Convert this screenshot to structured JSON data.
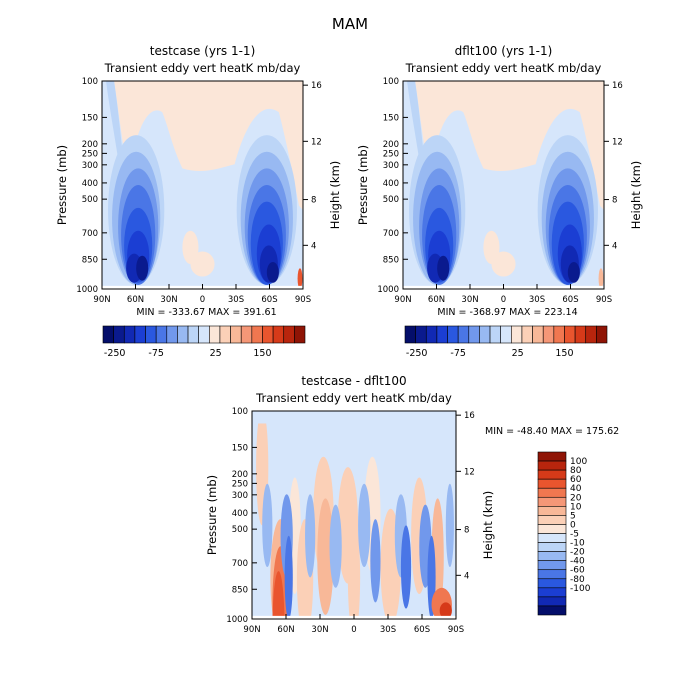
{
  "page_title": "MAM",
  "colors": {
    "blues": [
      "#ffffff",
      "#d6e6fb",
      "#bcd5f7",
      "#98b9f2",
      "#7198ec",
      "#4a76e6",
      "#2a58e0",
      "#1b3ed3",
      "#1129b4",
      "#0a1a8e",
      "#040e6a"
    ],
    "reds": [
      "#ffffff",
      "#fbe6d8",
      "#fbd0b7",
      "#f8b898",
      "#f59777",
      "#f07750",
      "#e9552e",
      "#d63a19",
      "#b8250d",
      "#8f1405"
    ]
  },
  "chart_data": [
    {
      "type": "heatmap",
      "title": "testcase (yrs 1-1)",
      "subtitle": "Transient eddy vert heatK mb/day",
      "xlabel": "",
      "ylabel": "Pressure (mb)",
      "y2label": "Height (km)",
      "x_ticks": [
        "90N",
        "60N",
        "30N",
        "0",
        "30S",
        "60S",
        "90S"
      ],
      "y_ticks": [
        "100",
        "150",
        "200",
        "250",
        "300",
        "400",
        "500",
        "700",
        "850",
        "1000"
      ],
      "y2_ticks": [
        "16",
        "12",
        "8",
        "4"
      ],
      "stats": "MIN = -333.67    MAX = 391.61",
      "colorbar_labels": [
        "-250",
        "-75",
        "25",
        "150"
      ],
      "min": -333.67,
      "max": 391.61
    },
    {
      "type": "heatmap",
      "title": "dflt100 (yrs 1-1)",
      "subtitle": "Transient eddy vert heatK mb/day",
      "xlabel": "",
      "ylabel": "Pressure (mb)",
      "y2label": "Height (km)",
      "x_ticks": [
        "90N",
        "60N",
        "30N",
        "0",
        "30S",
        "60S",
        "90S"
      ],
      "y_ticks": [
        "100",
        "150",
        "200",
        "250",
        "300",
        "400",
        "500",
        "700",
        "850",
        "1000"
      ],
      "y2_ticks": [
        "16",
        "12",
        "8",
        "4"
      ],
      "stats": "MIN = -368.97    MAX = 223.14",
      "colorbar_labels": [
        "-250",
        "-75",
        "25",
        "150"
      ],
      "min": -368.97,
      "max": 223.14
    },
    {
      "type": "heatmap",
      "title": "testcase - dflt100",
      "subtitle": "Transient eddy vert heatK mb/day",
      "xlabel": "",
      "ylabel": "Pressure (mb)",
      "y2label": "Height (km)",
      "x_ticks": [
        "90N",
        "60N",
        "30N",
        "0",
        "30S",
        "60S",
        "90S"
      ],
      "y_ticks": [
        "100",
        "150",
        "200",
        "250",
        "300",
        "400",
        "500",
        "700",
        "850",
        "1000"
      ],
      "y2_ticks": [
        "16",
        "12",
        "8",
        "4"
      ],
      "stats": "MIN = -48.40    MAX = 175.62",
      "colorbar_labels": [
        "100",
        "80",
        "60",
        "40",
        "20",
        "10",
        "5",
        "0",
        "-5",
        "-10",
        "-20",
        "-40",
        "-60",
        "-80",
        "-100"
      ],
      "min": -48.4,
      "max": 175.62
    }
  ]
}
